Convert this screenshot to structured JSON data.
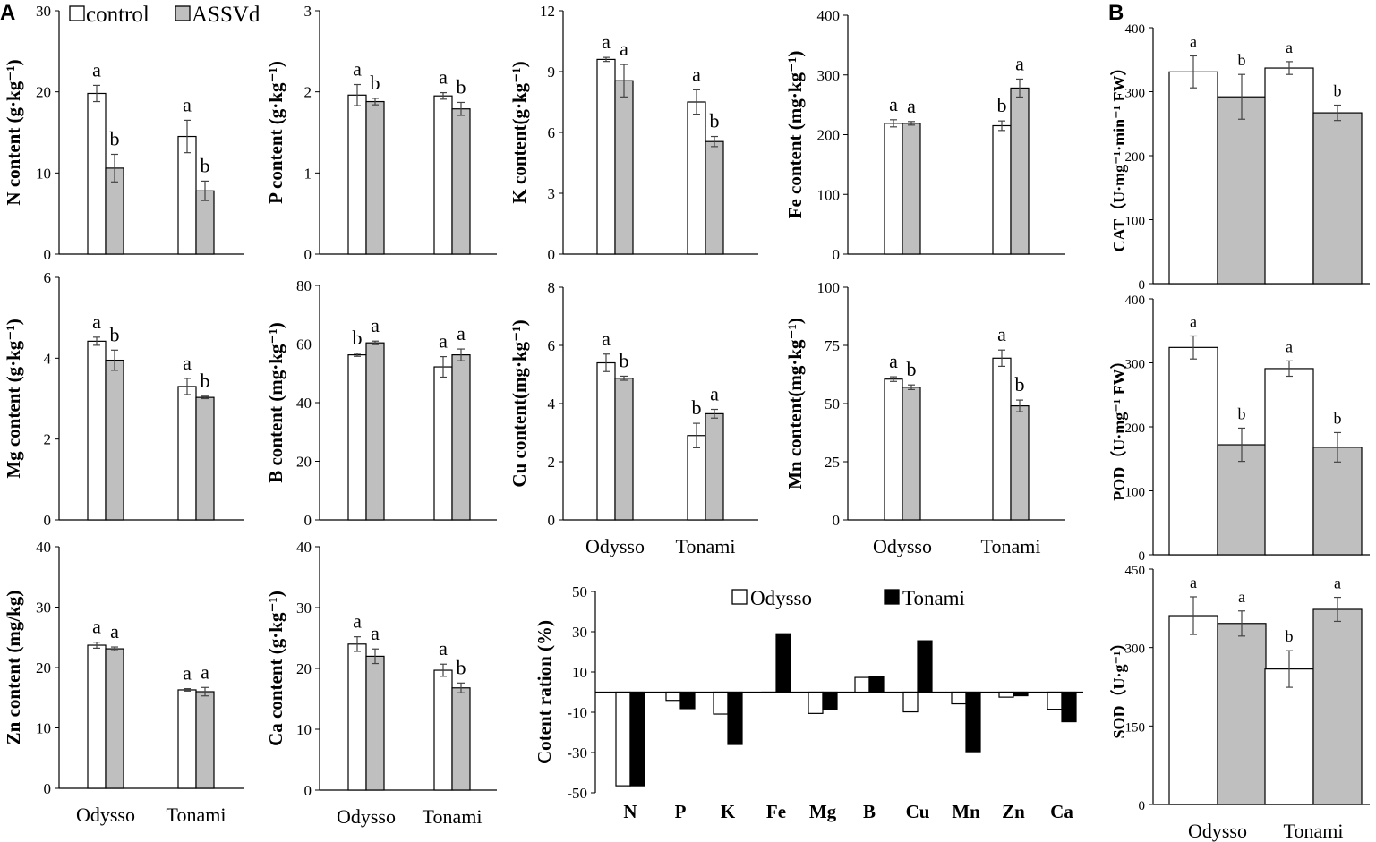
{
  "panel_labels": [
    "A",
    "B"
  ],
  "legend_top": {
    "control": "control",
    "treated": "ASSVd"
  },
  "legend_ratio": {
    "odysso": "Odysso",
    "tonami": "Tonami"
  },
  "colors": {
    "control": "#ffffff",
    "treated": "#bfbfbf",
    "odysso": "#ffffff",
    "tonami": "#000000",
    "stroke": "#000000"
  },
  "chart_data": [
    {
      "id": "N",
      "type": "bar",
      "ylabel": "N content (g·kg⁻¹)",
      "ylim": [
        0,
        30
      ],
      "yticks": [
        0,
        10,
        20,
        30
      ],
      "categories": [
        "Odysso",
        "Tonami"
      ],
      "show_xlabels": false,
      "series": [
        {
          "name": "control",
          "values": [
            19.8,
            14.5
          ],
          "errors": [
            1.0,
            2.0
          ],
          "letters": [
            "a",
            "a"
          ]
        },
        {
          "name": "ASSVd",
          "values": [
            10.6,
            7.8
          ],
          "errors": [
            1.7,
            1.2
          ],
          "letters": [
            "b",
            "b"
          ]
        }
      ]
    },
    {
      "id": "P",
      "type": "bar",
      "ylabel": "P content (g·kg⁻¹)",
      "ylim": [
        0,
        3
      ],
      "yticks": [
        0,
        1,
        2,
        3
      ],
      "categories": [
        "Odysso",
        "Tonami"
      ],
      "show_xlabels": false,
      "series": [
        {
          "name": "control",
          "values": [
            1.96,
            1.95
          ],
          "errors": [
            0.13,
            0.04
          ],
          "letters": [
            "a",
            "a"
          ]
        },
        {
          "name": "ASSVd",
          "values": [
            1.88,
            1.79
          ],
          "errors": [
            0.04,
            0.08
          ],
          "letters": [
            "b",
            "b"
          ]
        }
      ]
    },
    {
      "id": "K",
      "type": "bar",
      "ylabel": "K content(g·kg⁻¹)",
      "ylim": [
        0,
        12
      ],
      "yticks": [
        0,
        3,
        6,
        9,
        12
      ],
      "categories": [
        "Odysso",
        "Tonami"
      ],
      "show_xlabels": false,
      "series": [
        {
          "name": "control",
          "values": [
            9.6,
            7.5
          ],
          "errors": [
            0.1,
            0.6
          ],
          "letters": [
            "a",
            "a"
          ]
        },
        {
          "name": "ASSVd",
          "values": [
            8.55,
            5.55
          ],
          "errors": [
            0.8,
            0.25
          ],
          "letters": [
            "a",
            "b"
          ]
        }
      ]
    },
    {
      "id": "Fe",
      "type": "bar",
      "ylabel": "Fe content (mg·kg⁻¹)",
      "ylim": [
        0,
        400
      ],
      "yticks": [
        0,
        100,
        200,
        300,
        400
      ],
      "categories": [
        "Odysso",
        "Tonami"
      ],
      "show_xlabels": false,
      "series": [
        {
          "name": "control",
          "values": [
            219,
            215
          ],
          "errors": [
            6,
            8
          ],
          "letters": [
            "a",
            "b"
          ]
        },
        {
          "name": "ASSVd",
          "values": [
            219,
            278
          ],
          "errors": [
            3,
            15
          ],
          "letters": [
            "a",
            "a"
          ]
        }
      ]
    },
    {
      "id": "Mg",
      "type": "bar",
      "ylabel": "Mg content (g·kg⁻¹)",
      "ylim": [
        0,
        6
      ],
      "yticks": [
        0,
        2,
        4,
        6
      ],
      "categories": [
        "Odysso",
        "Tonami"
      ],
      "show_xlabels": false,
      "series": [
        {
          "name": "control",
          "values": [
            4.42,
            3.3
          ],
          "errors": [
            0.1,
            0.2
          ],
          "letters": [
            "a",
            "a"
          ]
        },
        {
          "name": "ASSVd",
          "values": [
            3.95,
            3.03
          ],
          "errors": [
            0.25,
            0.03
          ],
          "letters": [
            "b",
            "b"
          ]
        }
      ]
    },
    {
      "id": "B",
      "type": "bar",
      "ylabel": "B content (mg·kg⁻¹)",
      "ylim": [
        0,
        80
      ],
      "yticks": [
        0,
        20,
        40,
        60,
        80
      ],
      "categories": [
        "Odysso",
        "Tonami"
      ],
      "show_xlabels": false,
      "series": [
        {
          "name": "control",
          "values": [
            56.3,
            52.2
          ],
          "errors": [
            0.5,
            3.5
          ],
          "letters": [
            "b",
            "a"
          ]
        },
        {
          "name": "ASSVd",
          "values": [
            60.4,
            56.3
          ],
          "errors": [
            0.6,
            2.0
          ],
          "letters": [
            "a",
            "a"
          ]
        }
      ]
    },
    {
      "id": "Cu",
      "type": "bar",
      "ylabel": "Cu content(mg·kg⁻¹)",
      "ylim": [
        0,
        8
      ],
      "yticks": [
        0,
        2,
        4,
        6,
        8
      ],
      "categories": [
        "Odysso",
        "Tonami"
      ],
      "show_xlabels": true,
      "series": [
        {
          "name": "control",
          "values": [
            5.4,
            2.9
          ],
          "errors": [
            0.3,
            0.42
          ],
          "letters": [
            "a",
            "b"
          ]
        },
        {
          "name": "ASSVd",
          "values": [
            4.87,
            3.65
          ],
          "errors": [
            0.07,
            0.15
          ],
          "letters": [
            "b",
            "a"
          ]
        }
      ]
    },
    {
      "id": "Mn",
      "type": "bar",
      "ylabel": "Mn content(mg·kg⁻¹)",
      "ylim": [
        0,
        100
      ],
      "yticks": [
        0,
        25,
        50,
        75,
        100
      ],
      "categories": [
        "Odysso",
        "Tonami"
      ],
      "show_xlabels": true,
      "series": [
        {
          "name": "control",
          "values": [
            60.5,
            69.5
          ],
          "errors": [
            1.0,
            3.5
          ],
          "letters": [
            "a",
            "a"
          ]
        },
        {
          "name": "ASSVd",
          "values": [
            57.0,
            49.0
          ],
          "errors": [
            1.0,
            2.5
          ],
          "letters": [
            "b",
            "b"
          ]
        }
      ]
    },
    {
      "id": "Zn",
      "type": "bar",
      "ylabel": "Zn content (mg/kg)",
      "ylim": [
        0,
        40
      ],
      "yticks": [
        0,
        10,
        20,
        30,
        40
      ],
      "categories": [
        "Odysso",
        "Tonami"
      ],
      "show_xlabels": true,
      "series": [
        {
          "name": "control",
          "values": [
            23.7,
            16.3
          ],
          "errors": [
            0.5,
            0.2
          ],
          "letters": [
            "a",
            "a"
          ]
        },
        {
          "name": "ASSVd",
          "values": [
            23.1,
            16.0
          ],
          "errors": [
            0.3,
            0.7
          ],
          "letters": [
            "a",
            "a"
          ]
        }
      ]
    },
    {
      "id": "Ca",
      "type": "bar",
      "ylabel": "Ca content (g·kg⁻¹)",
      "ylim": [
        0,
        40
      ],
      "yticks": [
        0,
        10,
        20,
        30,
        40
      ],
      "categories": [
        "Odysso",
        "Tonami"
      ],
      "show_xlabels": true,
      "series": [
        {
          "name": "control",
          "values": [
            24.0,
            19.7
          ],
          "errors": [
            1.2,
            1.0
          ],
          "letters": [
            "a",
            "a"
          ]
        },
        {
          "name": "ASSVd",
          "values": [
            22.0,
            16.8
          ],
          "errors": [
            1.2,
            0.8
          ],
          "letters": [
            "a",
            "b"
          ]
        }
      ]
    },
    {
      "id": "ratio",
      "type": "bar",
      "ylabel": "Cotent ration (%)",
      "ylim": [
        -50,
        50
      ],
      "yticks": [
        -50,
        -30,
        -10,
        10,
        30,
        50
      ],
      "categories": [
        "N",
        "P",
        "K",
        "Fe",
        "Mg",
        "B",
        "Cu",
        "Mn",
        "Zn",
        "Ca"
      ],
      "show_xlabels": true,
      "series": [
        {
          "name": "Odysso",
          "values": [
            -46.5,
            -4.1,
            -10.9,
            -0.2,
            -10.6,
            7.3,
            -9.8,
            -5.8,
            -2.5,
            -8.5
          ]
        },
        {
          "name": "Tonami",
          "values": [
            -46.5,
            -8.2,
            -26.0,
            29.0,
            -8.5,
            7.8,
            25.5,
            -29.6,
            -1.8,
            -14.7
          ]
        }
      ]
    },
    {
      "id": "CAT",
      "type": "bar",
      "ylabel": "CAT（U·mg⁻¹·min⁻¹ FW）",
      "ylim": [
        0,
        400
      ],
      "yticks": [
        0,
        100,
        200,
        300,
        400
      ],
      "categories": [
        "Odysso",
        "Tonami"
      ],
      "show_xlabels": false,
      "series": [
        {
          "name": "control",
          "values": [
            331,
            337
          ],
          "errors": [
            25,
            10
          ],
          "letters": [
            "a",
            "a"
          ]
        },
        {
          "name": "ASSVd",
          "values": [
            292,
            267
          ],
          "errors": [
            35,
            12
          ],
          "letters": [
            "b",
            "b"
          ]
        }
      ]
    },
    {
      "id": "POD",
      "type": "bar",
      "ylabel": "POD（U·mg⁻¹ FW）",
      "ylim": [
        0,
        400
      ],
      "yticks": [
        0,
        100,
        200,
        300,
        400
      ],
      "categories": [
        "Odysso",
        "Tonami"
      ],
      "show_xlabels": false,
      "series": [
        {
          "name": "control",
          "values": [
            324,
            291
          ],
          "errors": [
            18,
            12
          ],
          "letters": [
            "a",
            "a"
          ]
        },
        {
          "name": "ASSVd",
          "values": [
            172,
            168
          ],
          "errors": [
            26,
            23
          ],
          "letters": [
            "b",
            "b"
          ]
        }
      ]
    },
    {
      "id": "SOD",
      "type": "bar",
      "ylabel": "SOD（U·g⁻¹）",
      "ylim": [
        0,
        450
      ],
      "yticks": [
        0,
        150,
        300,
        450
      ],
      "categories": [
        "Odysso",
        "Tonami"
      ],
      "show_xlabels": true,
      "series": [
        {
          "name": "control",
          "values": [
            361,
            259
          ],
          "errors": [
            36,
            35
          ],
          "letters": [
            "a",
            "b"
          ]
        },
        {
          "name": "ASSVd",
          "values": [
            346,
            373
          ],
          "errors": [
            24,
            23
          ],
          "letters": [
            "a",
            "a"
          ]
        }
      ]
    }
  ]
}
